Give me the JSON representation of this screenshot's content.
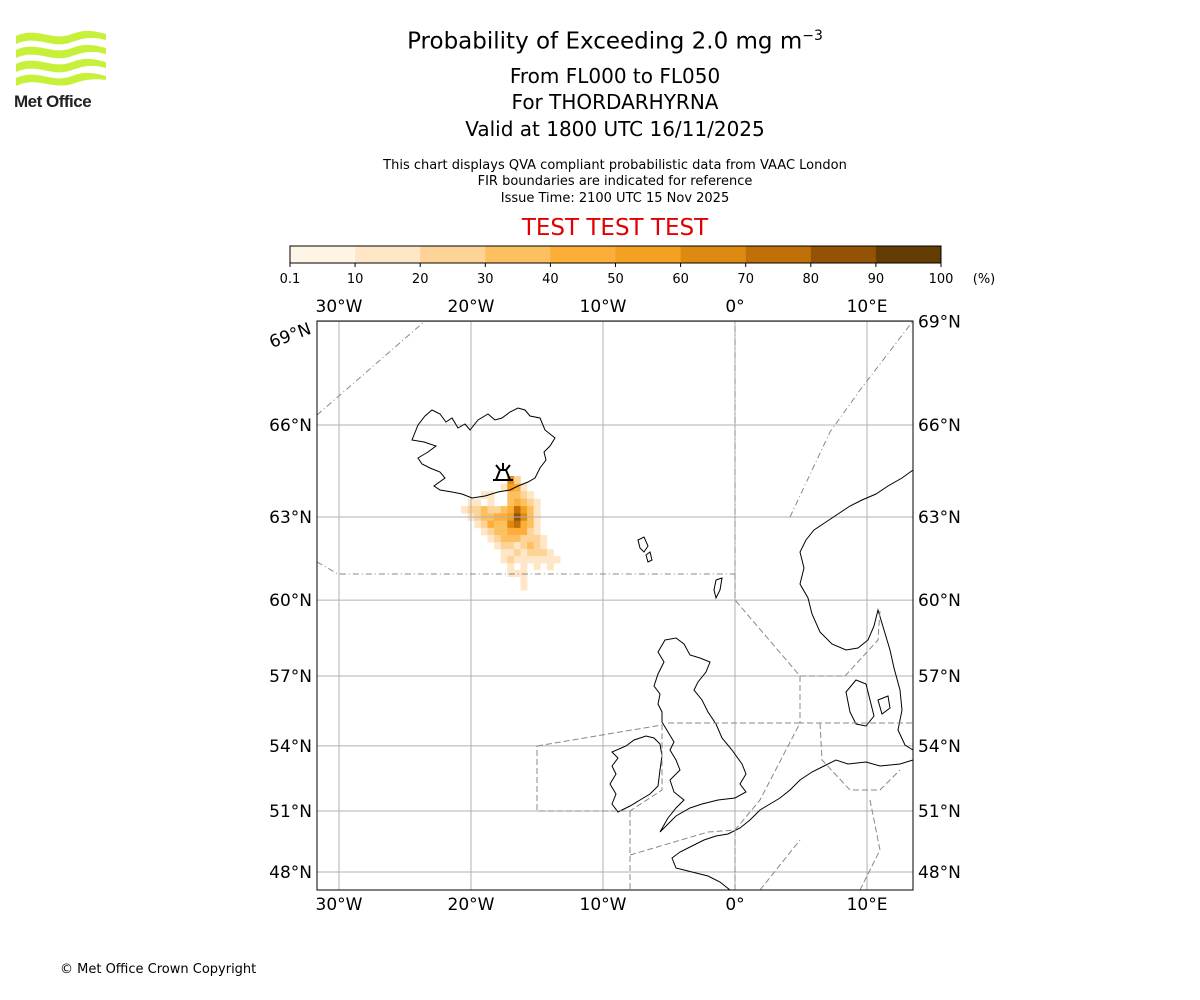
{
  "logo": {
    "name": "Met Office",
    "colors": [
      "#c6f03a"
    ]
  },
  "header": {
    "title": "Probability of Exceeding 2.0 mg m",
    "title_sup": "−3",
    "levels": "From FL000 to FL050",
    "volcano": "For THORDARHYRNA",
    "valid": "Valid at 1800 UTC 16/11/2025",
    "note1": "This chart displays QVA compliant probabilistic data from VAAC London",
    "note2": "FIR boundaries are indicated for reference",
    "issue": "Issue Time: 2100 UTC 15 Nov 2025",
    "test_banner": "TEST TEST TEST"
  },
  "footer": {
    "copyright": "© Met Office Crown Copyright"
  },
  "chart_data": {
    "type": "heatmap",
    "title": "Probability of Exceeding 2.0 mg m-3",
    "projection": "mercator",
    "lon_range": [
      -31.6,
      13.4
    ],
    "lat_range": [
      47.4,
      69.0
    ],
    "colorbar": {
      "ticks": [
        "0.1",
        "10",
        "20",
        "30",
        "40",
        "50",
        "60",
        "70",
        "80",
        "90",
        "100"
      ],
      "unit": "(%)",
      "colors": [
        "#fff5e6",
        "#fee6c6",
        "#fdd398",
        "#fdc060",
        "#fdae38",
        "#f4a021",
        "#de8a11",
        "#c07008",
        "#945205",
        "#623c02"
      ]
    },
    "lon_ticks": [
      {
        "value": -30,
        "label": "30°W"
      },
      {
        "value": -20,
        "label": "20°W"
      },
      {
        "value": -10,
        "label": "10°W"
      },
      {
        "value": 0,
        "label": "0°"
      },
      {
        "value": 10,
        "label": "10°E"
      }
    ],
    "lat_ticks": [
      {
        "value": 48,
        "label": "48°N"
      },
      {
        "value": 51,
        "label": "51°N"
      },
      {
        "value": 54,
        "label": "54°N"
      },
      {
        "value": 57,
        "label": "57°N"
      },
      {
        "value": 60,
        "label": "60°N"
      },
      {
        "value": 63,
        "label": "63°N"
      },
      {
        "value": 66,
        "label": "66°N"
      },
      {
        "value": 69,
        "label": "69°N"
      }
    ],
    "volcano": {
      "name": "THORDARHYRNA",
      "lon": -17.6,
      "lat": 64.3
    },
    "cells_note": "rows of [lon, probability %] at each latitude",
    "rows": [
      {
        "lat": 64.25,
        "cells": [
          [
            -17.0,
            60
          ],
          [
            -16.5,
            20
          ]
        ]
      },
      {
        "lat": 64.0,
        "cells": [
          [
            -17.5,
            10
          ],
          [
            -17.0,
            50
          ],
          [
            -16.5,
            40
          ],
          [
            -16.0,
            10
          ]
        ]
      },
      {
        "lat": 63.75,
        "cells": [
          [
            -19.0,
            10
          ],
          [
            -18.5,
            10
          ],
          [
            -17.0,
            30
          ],
          [
            -16.5,
            30
          ],
          [
            -16.0,
            20
          ],
          [
            -15.5,
            10
          ]
        ]
      },
      {
        "lat": 63.5,
        "cells": [
          [
            -20.0,
            10
          ],
          [
            -19.5,
            10
          ],
          [
            -18.5,
            10
          ],
          [
            -17.0,
            30
          ],
          [
            -16.5,
            40
          ],
          [
            -16.0,
            30
          ],
          [
            -15.5,
            20
          ],
          [
            -15.0,
            10
          ]
        ]
      },
      {
        "lat": 63.25,
        "cells": [
          [
            -20.5,
            10
          ],
          [
            -20.0,
            20
          ],
          [
            -19.5,
            20
          ],
          [
            -19.0,
            30
          ],
          [
            -18.5,
            20
          ],
          [
            -18.0,
            20
          ],
          [
            -17.5,
            30
          ],
          [
            -17.0,
            40
          ],
          [
            -16.5,
            70
          ],
          [
            -16.0,
            50
          ],
          [
            -15.5,
            30
          ],
          [
            -15.0,
            10
          ]
        ]
      },
      {
        "lat": 63.0,
        "cells": [
          [
            -20.0,
            10
          ],
          [
            -19.5,
            20
          ],
          [
            -19.0,
            30
          ],
          [
            -18.5,
            30
          ],
          [
            -18.0,
            40
          ],
          [
            -17.5,
            40
          ],
          [
            -17.0,
            50
          ],
          [
            -16.5,
            80
          ],
          [
            -16.0,
            60
          ],
          [
            -15.5,
            30
          ],
          [
            -15.0,
            10
          ]
        ]
      },
      {
        "lat": 62.75,
        "cells": [
          [
            -19.5,
            10
          ],
          [
            -19.0,
            20
          ],
          [
            -18.5,
            40
          ],
          [
            -18.0,
            30
          ],
          [
            -17.5,
            30
          ],
          [
            -17.0,
            60
          ],
          [
            -16.5,
            70
          ],
          [
            -16.0,
            40
          ],
          [
            -15.5,
            30
          ],
          [
            -15.0,
            10
          ]
        ]
      },
      {
        "lat": 62.5,
        "cells": [
          [
            -19.0,
            10
          ],
          [
            -18.5,
            20
          ],
          [
            -18.0,
            30
          ],
          [
            -17.5,
            30
          ],
          [
            -17.0,
            40
          ],
          [
            -16.5,
            40
          ],
          [
            -16.0,
            40
          ],
          [
            -15.5,
            20
          ],
          [
            -15.0,
            10
          ]
        ]
      },
      {
        "lat": 62.25,
        "cells": [
          [
            -18.5,
            10
          ],
          [
            -18.0,
            20
          ],
          [
            -17.5,
            30
          ],
          [
            -17.0,
            30
          ],
          [
            -16.5,
            30
          ],
          [
            -16.0,
            20
          ],
          [
            -15.5,
            20
          ],
          [
            -15.0,
            20
          ],
          [
            -14.5,
            10
          ]
        ]
      },
      {
        "lat": 62.0,
        "cells": [
          [
            -18.0,
            10
          ],
          [
            -17.5,
            20
          ],
          [
            -17.0,
            20
          ],
          [
            -16.5,
            10
          ],
          [
            -16.0,
            20
          ],
          [
            -15.5,
            30
          ],
          [
            -15.0,
            20
          ],
          [
            -14.5,
            10
          ]
        ]
      },
      {
        "lat": 61.75,
        "cells": [
          [
            -17.5,
            10
          ],
          [
            -17.0,
            10
          ],
          [
            -16.5,
            20
          ],
          [
            -16.0,
            10
          ],
          [
            -15.5,
            20
          ],
          [
            -15.0,
            20
          ],
          [
            -14.5,
            20
          ],
          [
            -14.0,
            10
          ]
        ]
      },
      {
        "lat": 61.5,
        "cells": [
          [
            -17.5,
            10
          ],
          [
            -17.0,
            20
          ],
          [
            -16.5,
            10
          ],
          [
            -16.0,
            10
          ],
          [
            -15.5,
            10
          ],
          [
            -15.0,
            10
          ],
          [
            -14.5,
            10
          ],
          [
            -14.0,
            10
          ],
          [
            -13.5,
            10
          ]
        ]
      },
      {
        "lat": 61.25,
        "cells": [
          [
            -17.0,
            10
          ],
          [
            -16.0,
            10
          ],
          [
            -15.0,
            10
          ],
          [
            -14.0,
            10
          ]
        ]
      },
      {
        "lat": 61.0,
        "cells": [
          [
            -17.0,
            10
          ],
          [
            -16.5,
            10
          ],
          [
            -16.0,
            10
          ]
        ]
      },
      {
        "lat": 60.75,
        "cells": [
          [
            -16.0,
            10
          ]
        ]
      },
      {
        "lat": 60.5,
        "cells": [
          [
            -16.0,
            10
          ]
        ]
      }
    ]
  }
}
